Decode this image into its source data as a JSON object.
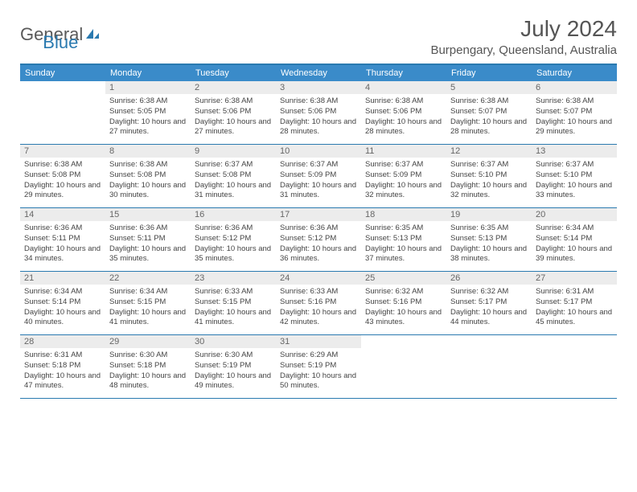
{
  "logo": {
    "text1": "General",
    "text2": "Blue"
  },
  "title": "July 2024",
  "location": "Burpengary, Queensland, Australia",
  "colors": {
    "header_bg": "#3a8bc9",
    "border": "#2a7ab0",
    "daynum_bg": "#ececec",
    "text": "#444444",
    "title": "#555555"
  },
  "day_labels": [
    "Sunday",
    "Monday",
    "Tuesday",
    "Wednesday",
    "Thursday",
    "Friday",
    "Saturday"
  ],
  "weeks": [
    [
      {
        "n": "",
        "sr": "",
        "ss": "",
        "dl": "",
        "empty": true
      },
      {
        "n": "1",
        "sr": "Sunrise: 6:38 AM",
        "ss": "Sunset: 5:05 PM",
        "dl": "Daylight: 10 hours and 27 minutes."
      },
      {
        "n": "2",
        "sr": "Sunrise: 6:38 AM",
        "ss": "Sunset: 5:06 PM",
        "dl": "Daylight: 10 hours and 27 minutes."
      },
      {
        "n": "3",
        "sr": "Sunrise: 6:38 AM",
        "ss": "Sunset: 5:06 PM",
        "dl": "Daylight: 10 hours and 28 minutes."
      },
      {
        "n": "4",
        "sr": "Sunrise: 6:38 AM",
        "ss": "Sunset: 5:06 PM",
        "dl": "Daylight: 10 hours and 28 minutes."
      },
      {
        "n": "5",
        "sr": "Sunrise: 6:38 AM",
        "ss": "Sunset: 5:07 PM",
        "dl": "Daylight: 10 hours and 28 minutes."
      },
      {
        "n": "6",
        "sr": "Sunrise: 6:38 AM",
        "ss": "Sunset: 5:07 PM",
        "dl": "Daylight: 10 hours and 29 minutes."
      }
    ],
    [
      {
        "n": "7",
        "sr": "Sunrise: 6:38 AM",
        "ss": "Sunset: 5:08 PM",
        "dl": "Daylight: 10 hours and 29 minutes."
      },
      {
        "n": "8",
        "sr": "Sunrise: 6:38 AM",
        "ss": "Sunset: 5:08 PM",
        "dl": "Daylight: 10 hours and 30 minutes."
      },
      {
        "n": "9",
        "sr": "Sunrise: 6:37 AM",
        "ss": "Sunset: 5:08 PM",
        "dl": "Daylight: 10 hours and 31 minutes."
      },
      {
        "n": "10",
        "sr": "Sunrise: 6:37 AM",
        "ss": "Sunset: 5:09 PM",
        "dl": "Daylight: 10 hours and 31 minutes."
      },
      {
        "n": "11",
        "sr": "Sunrise: 6:37 AM",
        "ss": "Sunset: 5:09 PM",
        "dl": "Daylight: 10 hours and 32 minutes."
      },
      {
        "n": "12",
        "sr": "Sunrise: 6:37 AM",
        "ss": "Sunset: 5:10 PM",
        "dl": "Daylight: 10 hours and 32 minutes."
      },
      {
        "n": "13",
        "sr": "Sunrise: 6:37 AM",
        "ss": "Sunset: 5:10 PM",
        "dl": "Daylight: 10 hours and 33 minutes."
      }
    ],
    [
      {
        "n": "14",
        "sr": "Sunrise: 6:36 AM",
        "ss": "Sunset: 5:11 PM",
        "dl": "Daylight: 10 hours and 34 minutes."
      },
      {
        "n": "15",
        "sr": "Sunrise: 6:36 AM",
        "ss": "Sunset: 5:11 PM",
        "dl": "Daylight: 10 hours and 35 minutes."
      },
      {
        "n": "16",
        "sr": "Sunrise: 6:36 AM",
        "ss": "Sunset: 5:12 PM",
        "dl": "Daylight: 10 hours and 35 minutes."
      },
      {
        "n": "17",
        "sr": "Sunrise: 6:36 AM",
        "ss": "Sunset: 5:12 PM",
        "dl": "Daylight: 10 hours and 36 minutes."
      },
      {
        "n": "18",
        "sr": "Sunrise: 6:35 AM",
        "ss": "Sunset: 5:13 PM",
        "dl": "Daylight: 10 hours and 37 minutes."
      },
      {
        "n": "19",
        "sr": "Sunrise: 6:35 AM",
        "ss": "Sunset: 5:13 PM",
        "dl": "Daylight: 10 hours and 38 minutes."
      },
      {
        "n": "20",
        "sr": "Sunrise: 6:34 AM",
        "ss": "Sunset: 5:14 PM",
        "dl": "Daylight: 10 hours and 39 minutes."
      }
    ],
    [
      {
        "n": "21",
        "sr": "Sunrise: 6:34 AM",
        "ss": "Sunset: 5:14 PM",
        "dl": "Daylight: 10 hours and 40 minutes."
      },
      {
        "n": "22",
        "sr": "Sunrise: 6:34 AM",
        "ss": "Sunset: 5:15 PM",
        "dl": "Daylight: 10 hours and 41 minutes."
      },
      {
        "n": "23",
        "sr": "Sunrise: 6:33 AM",
        "ss": "Sunset: 5:15 PM",
        "dl": "Daylight: 10 hours and 41 minutes."
      },
      {
        "n": "24",
        "sr": "Sunrise: 6:33 AM",
        "ss": "Sunset: 5:16 PM",
        "dl": "Daylight: 10 hours and 42 minutes."
      },
      {
        "n": "25",
        "sr": "Sunrise: 6:32 AM",
        "ss": "Sunset: 5:16 PM",
        "dl": "Daylight: 10 hours and 43 minutes."
      },
      {
        "n": "26",
        "sr": "Sunrise: 6:32 AM",
        "ss": "Sunset: 5:17 PM",
        "dl": "Daylight: 10 hours and 44 minutes."
      },
      {
        "n": "27",
        "sr": "Sunrise: 6:31 AM",
        "ss": "Sunset: 5:17 PM",
        "dl": "Daylight: 10 hours and 45 minutes."
      }
    ],
    [
      {
        "n": "28",
        "sr": "Sunrise: 6:31 AM",
        "ss": "Sunset: 5:18 PM",
        "dl": "Daylight: 10 hours and 47 minutes."
      },
      {
        "n": "29",
        "sr": "Sunrise: 6:30 AM",
        "ss": "Sunset: 5:18 PM",
        "dl": "Daylight: 10 hours and 48 minutes."
      },
      {
        "n": "30",
        "sr": "Sunrise: 6:30 AM",
        "ss": "Sunset: 5:19 PM",
        "dl": "Daylight: 10 hours and 49 minutes."
      },
      {
        "n": "31",
        "sr": "Sunrise: 6:29 AM",
        "ss": "Sunset: 5:19 PM",
        "dl": "Daylight: 10 hours and 50 minutes."
      },
      {
        "n": "",
        "sr": "",
        "ss": "",
        "dl": "",
        "empty": true
      },
      {
        "n": "",
        "sr": "",
        "ss": "",
        "dl": "",
        "empty": true
      },
      {
        "n": "",
        "sr": "",
        "ss": "",
        "dl": "",
        "empty": true
      }
    ]
  ]
}
